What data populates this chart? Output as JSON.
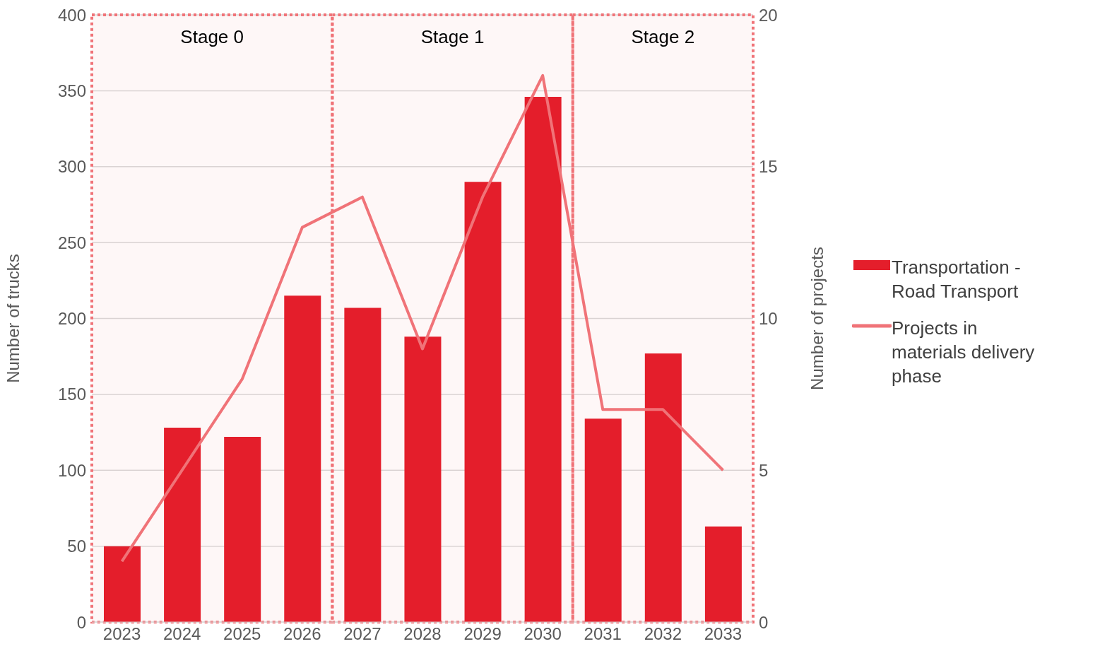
{
  "chart_data": {
    "type": "bar",
    "xlabel": null,
    "ylabel": "Number of trucks",
    "y2label": "Number of projects",
    "x": [
      2023,
      2024,
      2025,
      2026,
      2027,
      2028,
      2029,
      2030,
      2031,
      2032,
      2033
    ],
    "xlim": [
      2022.5,
      2033.5
    ],
    "xticks": [
      2023,
      2024,
      2025,
      2026,
      2027,
      2028,
      2029,
      2030,
      2031,
      2032,
      2033
    ],
    "ylim": [
      0,
      400
    ],
    "yticks": [
      0,
      50,
      100,
      150,
      200,
      250,
      300,
      350,
      400
    ],
    "y2lim": [
      0,
      20
    ],
    "y2ticks": [
      0,
      5,
      10,
      15,
      20
    ],
    "series": [
      {
        "name": "Transportation - Road Transport",
        "color": "#e41e2b",
        "values": [
          50,
          128,
          122,
          215,
          207,
          188,
          290,
          346,
          134,
          177,
          63
        ]
      },
      {
        "name": "Projects in materials delivery phase",
        "type": "line",
        "axis": "y2",
        "color": "#f07378",
        "values": [
          2,
          5,
          8,
          13,
          14,
          9,
          14,
          18,
          7,
          7,
          5
        ]
      }
    ],
    "bands": [
      {
        "axis": "x",
        "from": 2022.5,
        "to": 2026.5,
        "label": "Stage 0",
        "color": "#f07378"
      },
      {
        "axis": "x",
        "from": 2026.5,
        "to": 2030.5,
        "label": "Stage 1",
        "color": "#f07378"
      },
      {
        "axis": "x",
        "from": 2030.5,
        "to": 2033.5,
        "label": "Stage 2",
        "color": "#f07378"
      }
    ],
    "grid": "y",
    "legend": "right",
    "marker": "none",
    "line_style": "solid"
  }
}
